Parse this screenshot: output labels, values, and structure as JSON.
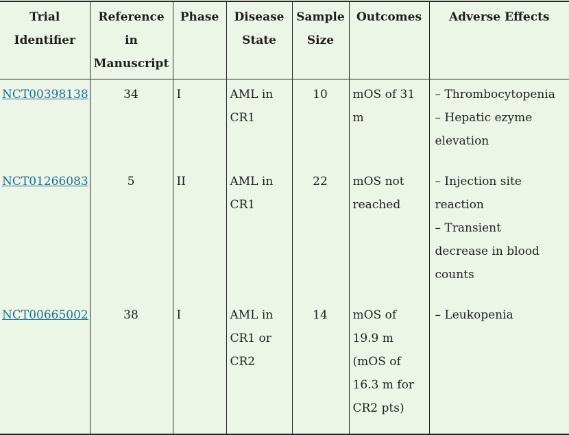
{
  "colors": {
    "background": "#ecf6e7",
    "border": "#262626",
    "text": "#1f1f1f",
    "link": "#1d6e94"
  },
  "table": {
    "columns": [
      {
        "id": "trial_identifier",
        "label": "Trial Identifier"
      },
      {
        "id": "reference",
        "label": "Reference in Manuscript"
      },
      {
        "id": "phase",
        "label": "Phase"
      },
      {
        "id": "disease_state",
        "label": "Disease State"
      },
      {
        "id": "sample_size",
        "label": "Sample Size"
      },
      {
        "id": "outcomes",
        "label": "Outcomes"
      },
      {
        "id": "adverse_effects",
        "label": "Adverse Effects"
      }
    ],
    "rows": [
      {
        "trial_identifier": "NCT00398138",
        "reference": "34",
        "phase": "I",
        "disease_state": "AML in CR1",
        "sample_size": "10",
        "outcomes": [
          "mOS of 31 m"
        ],
        "adverse_effects": [
          "– Thrombocytopenia",
          "– Hepatic ezyme elevation"
        ]
      },
      {
        "trial_identifier": "NCT01266083",
        "reference": "5",
        "phase": "II",
        "disease_state": "AML in CR1",
        "sample_size": "22",
        "outcomes": [
          "mOS not reached"
        ],
        "adverse_effects": [
          "– Injection site reaction",
          "– Transient decrease in blood counts"
        ]
      },
      {
        "trial_identifier": "NCT00665002",
        "reference": "38",
        "phase": "I",
        "disease_state": "AML in CR1 or CR2",
        "sample_size": "14",
        "outcomes": [
          "mOS of 19.9 m",
          "(mOS of 16.3 m for CR2 pts)"
        ],
        "adverse_effects": [
          "– Leukopenia"
        ]
      }
    ]
  }
}
